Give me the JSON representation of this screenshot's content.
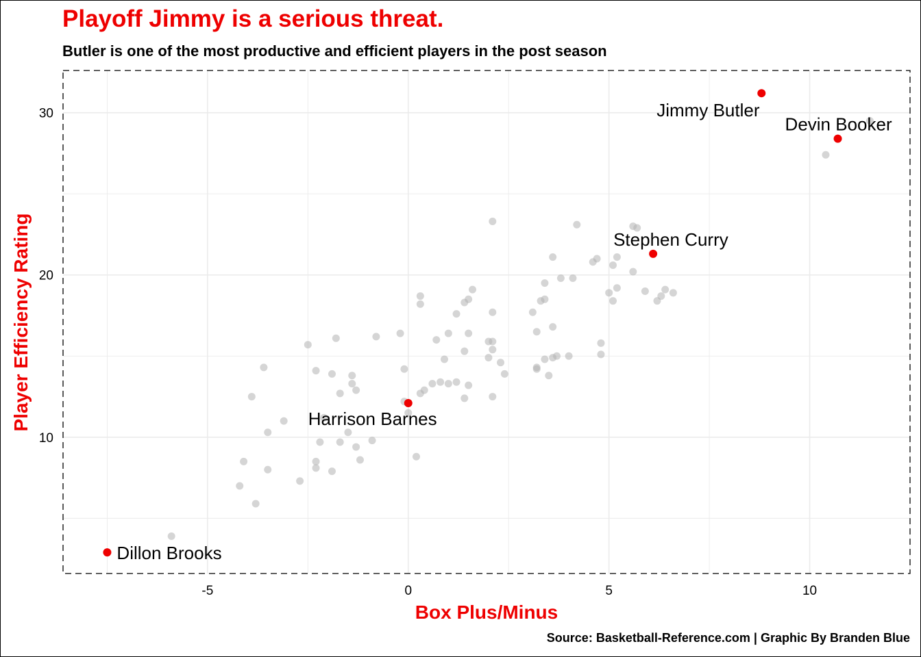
{
  "header": {
    "title": "Playoff Jimmy is a serious threat.",
    "subtitle": "Butler is one of the most productive and efficient players in the post season"
  },
  "footer": {
    "caption": "Source: Basketball-Reference.com | Graphic By Branden Blue"
  },
  "colors": {
    "accent": "#ee0000",
    "highlight_point": "#ee0000",
    "background_point": "#b3b3b3",
    "grid": "#ebebeb"
  },
  "chart_data": {
    "type": "scatter",
    "xlabel": "Box Plus/Minus",
    "ylabel": "Player Efficiency Rating",
    "xlim": [
      -8.6,
      12.5
    ],
    "ylim": [
      1.6,
      32.6
    ],
    "x_ticks": [
      -5,
      0,
      5,
      10
    ],
    "y_ticks": [
      10,
      20,
      30
    ],
    "grid": true,
    "legend": "none",
    "highlighted": [
      {
        "name": "Jimmy Butler",
        "x": 8.8,
        "y": 31.2
      },
      {
        "name": "Devin Booker",
        "x": 10.7,
        "y": 28.4
      },
      {
        "name": "Stephen Curry",
        "x": 6.1,
        "y": 21.3
      },
      {
        "name": "Harrison Barnes",
        "x": 0.0,
        "y": 12.1
      },
      {
        "name": "Dillon Brooks",
        "x": -7.5,
        "y": 2.9
      }
    ],
    "others": [
      [
        -5.9,
        3.9
      ],
      [
        -4.2,
        7.0
      ],
      [
        -3.8,
        5.9
      ],
      [
        -4.1,
        8.5
      ],
      [
        -3.5,
        8.0
      ],
      [
        -3.9,
        12.5
      ],
      [
        -3.6,
        14.3
      ],
      [
        -3.5,
        10.3
      ],
      [
        -3.1,
        11.0
      ],
      [
        -2.7,
        7.3
      ],
      [
        -2.5,
        15.7
      ],
      [
        -2.3,
        14.1
      ],
      [
        -2.3,
        8.5
      ],
      [
        -2.3,
        8.1
      ],
      [
        -2.2,
        9.7
      ],
      [
        -2.1,
        11.2
      ],
      [
        -1.9,
        13.9
      ],
      [
        -1.9,
        7.9
      ],
      [
        -1.8,
        16.1
      ],
      [
        -1.7,
        12.7
      ],
      [
        -1.7,
        9.7
      ],
      [
        -1.5,
        10.3
      ],
      [
        -1.4,
        13.8
      ],
      [
        -1.4,
        13.3
      ],
      [
        -1.3,
        12.9
      ],
      [
        -1.3,
        9.4
      ],
      [
        -1.2,
        8.6
      ],
      [
        -0.9,
        9.8
      ],
      [
        -0.8,
        16.2
      ],
      [
        -0.2,
        16.4
      ],
      [
        -0.1,
        14.2
      ],
      [
        -0.1,
        12.2
      ],
      [
        0.0,
        11.5
      ],
      [
        0.2,
        8.8
      ],
      [
        0.3,
        18.7
      ],
      [
        0.3,
        18.2
      ],
      [
        0.3,
        12.7
      ],
      [
        0.4,
        12.9
      ],
      [
        0.6,
        13.3
      ],
      [
        0.7,
        16.0
      ],
      [
        0.8,
        13.4
      ],
      [
        0.9,
        14.8
      ],
      [
        1.0,
        16.4
      ],
      [
        1.0,
        13.3
      ],
      [
        1.2,
        17.6
      ],
      [
        1.2,
        13.4
      ],
      [
        1.4,
        18.3
      ],
      [
        1.4,
        15.3
      ],
      [
        1.4,
        12.4
      ],
      [
        1.5,
        18.5
      ],
      [
        1.5,
        16.4
      ],
      [
        1.5,
        13.2
      ],
      [
        1.6,
        19.1
      ],
      [
        2.0,
        14.9
      ],
      [
        2.0,
        15.9
      ],
      [
        2.1,
        23.3
      ],
      [
        2.1,
        17.7
      ],
      [
        2.1,
        15.9
      ],
      [
        2.1,
        15.4
      ],
      [
        2.1,
        12.5
      ],
      [
        2.3,
        14.6
      ],
      [
        2.4,
        13.9
      ],
      [
        3.1,
        17.7
      ],
      [
        3.2,
        16.5
      ],
      [
        3.2,
        14.3
      ],
      [
        3.2,
        14.2
      ],
      [
        3.3,
        18.4
      ],
      [
        3.4,
        19.5
      ],
      [
        3.4,
        18.5
      ],
      [
        3.4,
        14.8
      ],
      [
        3.5,
        13.8
      ],
      [
        3.6,
        21.1
      ],
      [
        3.6,
        16.8
      ],
      [
        3.6,
        14.9
      ],
      [
        3.7,
        15.0
      ],
      [
        3.8,
        19.8
      ],
      [
        4.0,
        15.0
      ],
      [
        4.1,
        19.8
      ],
      [
        4.2,
        23.1
      ],
      [
        4.6,
        20.8
      ],
      [
        4.7,
        21.0
      ],
      [
        4.8,
        15.8
      ],
      [
        4.8,
        15.1
      ],
      [
        5.0,
        18.9
      ],
      [
        5.1,
        20.6
      ],
      [
        5.1,
        18.4
      ],
      [
        5.2,
        21.1
      ],
      [
        5.2,
        19.2
      ],
      [
        5.6,
        23.0
      ],
      [
        5.6,
        20.2
      ],
      [
        5.7,
        22.9
      ],
      [
        5.9,
        19.0
      ],
      [
        6.2,
        18.4
      ],
      [
        6.3,
        18.7
      ],
      [
        6.4,
        19.1
      ],
      [
        6.6,
        18.9
      ],
      [
        10.4,
        27.4
      ],
      [
        11.5,
        29.5
      ]
    ]
  }
}
